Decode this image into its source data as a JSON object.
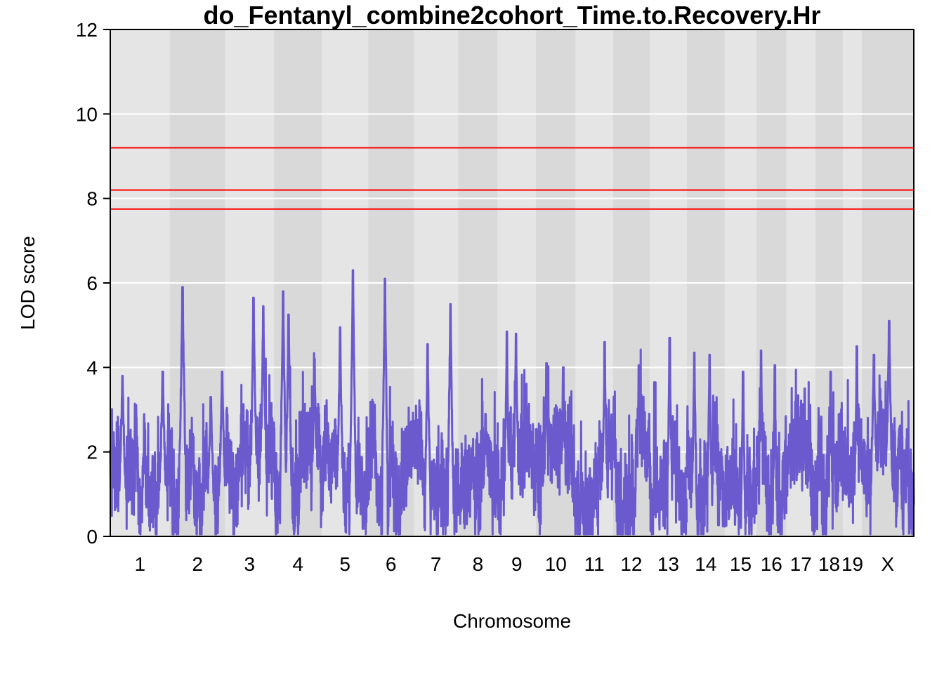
{
  "chart_data": {
    "type": "line",
    "title": "do_Fentanyl_combine2cohort_Time.to.Recovery.Hr",
    "xlabel": "Chromosome",
    "ylabel": "LOD score",
    "ylim": [
      0,
      12
    ],
    "yticks": [
      0,
      2,
      4,
      6,
      8,
      10,
      12
    ],
    "grid": true,
    "series_color": "#6A5ACD",
    "threshold_color": "#FF0000",
    "thresholds": [
      9.2,
      8.2,
      7.75
    ],
    "background_colors": {
      "light": "#E5E5E5",
      "dark": "#D9D9D9",
      "gridline": "#FFFFFF"
    },
    "chromosomes": [
      {
        "name": "1",
        "start": 0,
        "end": 195
      },
      {
        "name": "2",
        "start": 195,
        "end": 377
      },
      {
        "name": "3",
        "start": 377,
        "end": 537
      },
      {
        "name": "4",
        "start": 537,
        "end": 694
      },
      {
        "name": "5",
        "start": 694,
        "end": 846
      },
      {
        "name": "6",
        "start": 846,
        "end": 996
      },
      {
        "name": "7",
        "start": 996,
        "end": 1141
      },
      {
        "name": "8",
        "start": 1141,
        "end": 1271
      },
      {
        "name": "9",
        "start": 1271,
        "end": 1396
      },
      {
        "name": "10",
        "start": 1396,
        "end": 1527
      },
      {
        "name": "11",
        "start": 1527,
        "end": 1649
      },
      {
        "name": "12",
        "start": 1649,
        "end": 1770
      },
      {
        "name": "13",
        "start": 1770,
        "end": 1891
      },
      {
        "name": "14",
        "start": 1891,
        "end": 2016
      },
      {
        "name": "15",
        "start": 2016,
        "end": 2120
      },
      {
        "name": "16",
        "start": 2120,
        "end": 2218
      },
      {
        "name": "17",
        "start": 2218,
        "end": 2313
      },
      {
        "name": "18",
        "start": 2313,
        "end": 2404
      },
      {
        "name": "19",
        "start": 2404,
        "end": 2465
      },
      {
        "name": "X",
        "start": 2465,
        "end": 2636
      }
    ],
    "peaks": [
      {
        "chr": "1",
        "pos": 40,
        "lod": 3.8
      },
      {
        "chr": "1",
        "pos": 172,
        "lod": 3.9
      },
      {
        "chr": "2",
        "pos": 42,
        "lod": 5.9
      },
      {
        "chr": "2",
        "pos": 135,
        "lod": 3.3
      },
      {
        "chr": "2",
        "pos": 172,
        "lod": 3.9
      },
      {
        "chr": "3",
        "pos": 93,
        "lod": 5.65
      },
      {
        "chr": "3",
        "pos": 125,
        "lod": 5.45
      },
      {
        "chr": "4",
        "pos": 30,
        "lod": 5.8
      },
      {
        "chr": "4",
        "pos": 48,
        "lod": 5.25
      },
      {
        "chr": "4",
        "pos": 133,
        "lod": 4.2
      },
      {
        "chr": "5",
        "pos": 60,
        "lod": 4.95
      },
      {
        "chr": "5",
        "pos": 102,
        "lod": 6.3
      },
      {
        "chr": "6",
        "pos": 55,
        "lod": 6.1
      },
      {
        "chr": "7",
        "pos": 45,
        "lod": 4.55
      },
      {
        "chr": "7",
        "pos": 120,
        "lod": 5.5
      },
      {
        "chr": "8",
        "pos": 90,
        "lod": 2.9
      },
      {
        "chr": "9",
        "pos": 30,
        "lod": 4.85
      },
      {
        "chr": "9",
        "pos": 60,
        "lod": 4.8
      },
      {
        "chr": "10",
        "pos": 35,
        "lod": 4.1
      },
      {
        "chr": "10",
        "pos": 90,
        "lod": 4.0
      },
      {
        "chr": "11",
        "pos": 95,
        "lod": 4.6
      },
      {
        "chr": "12",
        "pos": 85,
        "lod": 4.05
      },
      {
        "chr": "13",
        "pos": 65,
        "lod": 4.7
      },
      {
        "chr": "14",
        "pos": 25,
        "lod": 4.35
      },
      {
        "chr": "14",
        "pos": 75,
        "lod": 4.3
      },
      {
        "chr": "15",
        "pos": 60,
        "lod": 3.9
      },
      {
        "chr": "16",
        "pos": 15,
        "lod": 4.4
      },
      {
        "chr": "16",
        "pos": 60,
        "lod": 4.05
      },
      {
        "chr": "17",
        "pos": 60,
        "lod": 3.5
      },
      {
        "chr": "18",
        "pos": 50,
        "lod": 3.9
      },
      {
        "chr": "19",
        "pos": 45,
        "lod": 4.5
      },
      {
        "chr": "X",
        "pos": 90,
        "lod": 5.1
      },
      {
        "chr": "X",
        "pos": 40,
        "lod": 4.3
      }
    ]
  }
}
